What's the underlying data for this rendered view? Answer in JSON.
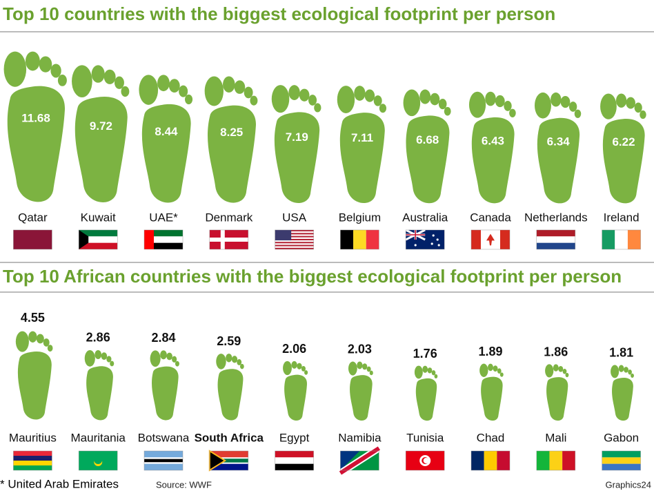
{
  "chart_data": [
    {
      "type": "pictograph",
      "title": "Top 10 countries with the biggest ecological footprint per person",
      "categories": [
        "Qatar",
        "Kuwait",
        "UAE*",
        "Denmark",
        "USA",
        "Belgium",
        "Australia",
        "Canada",
        "Netherlands",
        "Ireland"
      ],
      "values": [
        11.68,
        9.72,
        8.44,
        8.25,
        7.19,
        7.11,
        6.68,
        6.43,
        6.34,
        6.22
      ],
      "color": "#7cb342",
      "label_position": "inside"
    },
    {
      "type": "pictograph",
      "title": "Top 10 African countries with the biggest ecological footprint per person",
      "categories": [
        "Mauritius",
        "Mauritania",
        "Botswana",
        "South Africa",
        "Egypt",
        "Namibia",
        "Tunisia",
        "Chad",
        "Mali",
        "Gabon"
      ],
      "values": [
        4.55,
        2.86,
        2.84,
        2.59,
        2.06,
        2.03,
        1.76,
        1.89,
        1.86,
        1.81
      ],
      "color": "#7cb342",
      "label_position": "above",
      "highlight": 3
    }
  ],
  "footnote": "* United Arab Emirates",
  "source": "Source: WWF",
  "credit": "Graphics24"
}
